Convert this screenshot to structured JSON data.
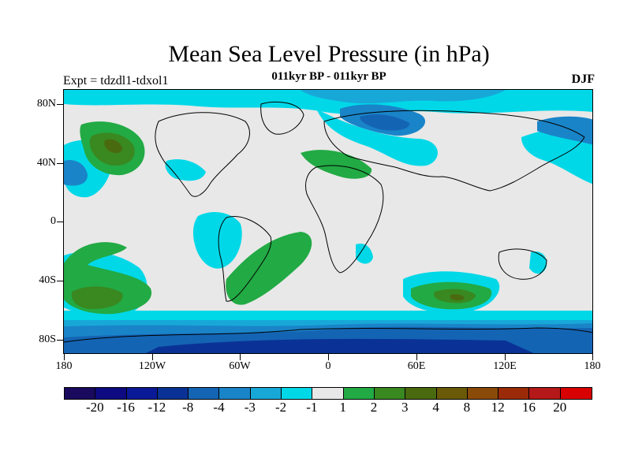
{
  "title": "Mean Sea Level Pressure (in hPa)",
  "subtitle": "011kyr BP - 011kyr BP",
  "experiment": "Expt = tdzdl1-tdxol1",
  "season": "DJF",
  "map": {
    "lon_labels": [
      "180",
      "120W",
      "60W",
      "0",
      "60E",
      "120E",
      "180"
    ],
    "lon_values": [
      -180,
      -120,
      -60,
      0,
      60,
      120,
      180
    ],
    "lat_labels": [
      "80N",
      "40N",
      "0",
      "40S",
      "80S"
    ],
    "lat_values": [
      80,
      40,
      0,
      -40,
      -80
    ],
    "lon_range": [
      -180,
      180
    ],
    "lat_range": [
      -90,
      90
    ],
    "background_color": "#e8e8e8"
  },
  "colorbar": {
    "colors": [
      "#1a0a5e",
      "#0d0a82",
      "#0a1a96",
      "#0a3296",
      "#1464b4",
      "#1a84c8",
      "#18a8d8",
      "#00d8e8",
      "#e8e8e8",
      "#22aa44",
      "#3a8820",
      "#4a6a10",
      "#6a5a08",
      "#8a4a08",
      "#9a2a08",
      "#b41818",
      "#d80000"
    ],
    "labels": [
      "-20",
      "-16",
      "-12",
      "-8",
      "-4",
      "-3",
      "-2",
      "-1",
      "1",
      "2",
      "3",
      "4",
      "8",
      "12",
      "16",
      "20"
    ]
  }
}
